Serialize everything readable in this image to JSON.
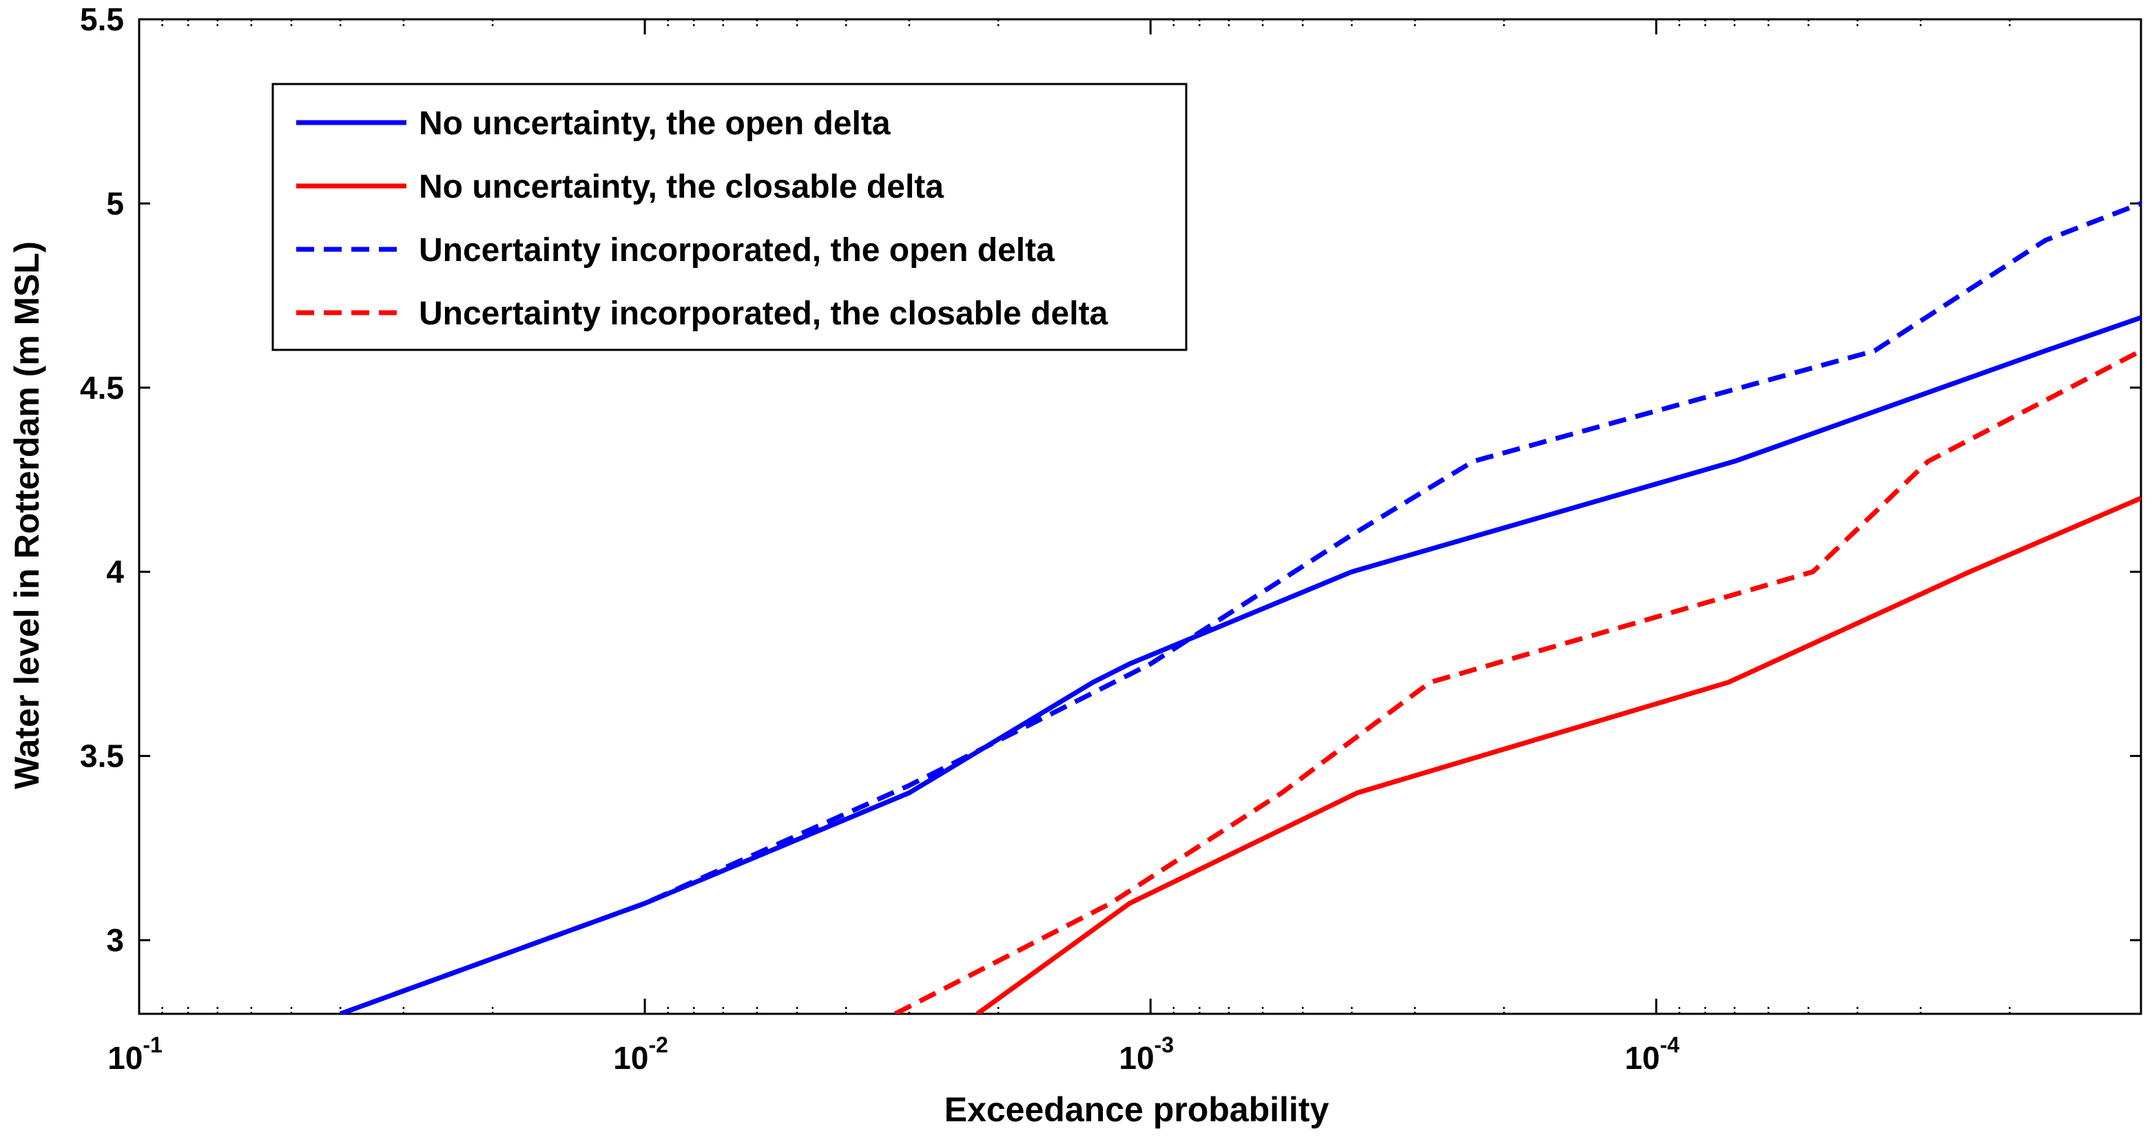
{
  "chart_data": {
    "type": "line",
    "title": "",
    "xlabel": "Exceedance probability",
    "ylabel": "Water level in Rotterdam (m MSL)",
    "x_scale": "log",
    "x_reversed": true,
    "xlim": [
      0.1,
      1.1e-05
    ],
    "ylim": [
      2.8,
      5.5
    ],
    "grid": false,
    "legend_position": "top-left",
    "x_ticks": [
      {
        "value": 0.1,
        "base": "10",
        "exp": "-1"
      },
      {
        "value": 0.01,
        "base": "10",
        "exp": "-2"
      },
      {
        "value": 0.001,
        "base": "10",
        "exp": "-3"
      },
      {
        "value": 0.0001,
        "base": "10",
        "exp": "-4"
      }
    ],
    "y_ticks": [
      {
        "value": 3,
        "label": "3"
      },
      {
        "value": 3.5,
        "label": "3.5"
      },
      {
        "value": 4,
        "label": "4"
      },
      {
        "value": 4.5,
        "label": "4.5"
      },
      {
        "value": 5,
        "label": "5"
      },
      {
        "value": 5.5,
        "label": "5.5"
      }
    ],
    "series": [
      {
        "name": "No uncertainty, the open delta",
        "color": "#0000ff",
        "dash": "solid",
        "x": [
          0.04,
          0.01,
          0.003,
          0.0013,
          0.0011,
          0.0004,
          7e-05,
          1.7e-05,
          1.1e-05
        ],
        "y": [
          2.8,
          3.1,
          3.4,
          3.7,
          3.75,
          4.0,
          4.3,
          4.6,
          4.69
        ]
      },
      {
        "name": "No uncertainty, the closable delta",
        "color": "#ff0000",
        "dash": "solid",
        "x": [
          0.0022,
          0.0011,
          0.00039,
          7.2e-05,
          2.4e-05,
          1.1e-05
        ],
        "y": [
          2.8,
          3.1,
          3.4,
          3.7,
          4.0,
          4.2
        ]
      },
      {
        "name": "Uncertainty incorporated, the open delta",
        "color": "#0000ff",
        "dash": "dashed",
        "x": [
          0.04,
          0.01,
          0.003,
          0.001,
          0.0004,
          0.00023,
          3.7e-05,
          1.7e-05,
          1.1e-05
        ],
        "y": [
          2.8,
          3.1,
          3.42,
          3.75,
          4.1,
          4.3,
          4.6,
          4.9,
          5.0
        ]
      },
      {
        "name": "Uncertainty incorporated, the closable delta",
        "color": "#ff0000",
        "dash": "dashed",
        "x": [
          0.0032,
          0.0012,
          0.00055,
          0.00028,
          4.9e-05,
          2.9e-05,
          1.1e-05
        ],
        "y": [
          2.8,
          3.1,
          3.4,
          3.7,
          4.0,
          4.3,
          4.6
        ]
      }
    ]
  }
}
